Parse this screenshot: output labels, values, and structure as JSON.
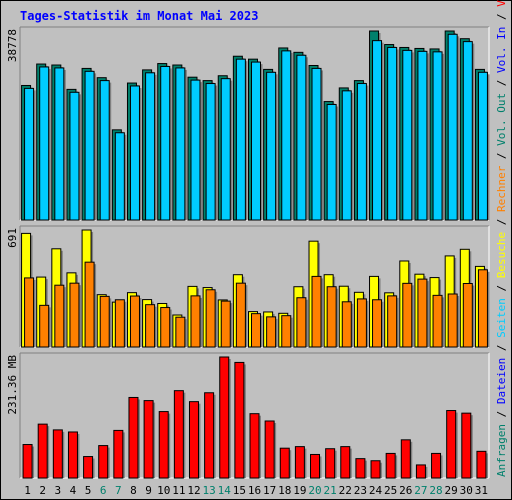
{
  "chart_data": {
    "type": "bar",
    "title": "Tages-Statistik im Monat Mai 2023",
    "categories": [
      "1",
      "2",
      "3",
      "4",
      "5",
      "6",
      "7",
      "8",
      "9",
      "10",
      "11",
      "12",
      "13",
      "14",
      "15",
      "16",
      "17",
      "18",
      "19",
      "20",
      "21",
      "22",
      "23",
      "24",
      "25",
      "26",
      "27",
      "28",
      "29",
      "30",
      "31"
    ],
    "weekend_days": [
      "6",
      "7",
      "13",
      "14",
      "20",
      "21",
      "27",
      "28"
    ],
    "panels": [
      {
        "id": "requests",
        "axis_label": "38778",
        "ymax": 38778,
        "series": [
          {
            "name": "Anfragen",
            "color": "#00806c",
            "values": [
              27600,
              32000,
              31800,
              26800,
              31100,
              29200,
              18500,
              28100,
              30800,
              32100,
              31800,
              29300,
              28600,
              29600,
              33600,
              33000,
              30900,
              35300,
              34400,
              31700,
              24300,
              27100,
              28600,
              38778,
              36000,
              35400,
              35200,
              35100,
              38778,
              37200,
              30900
            ]
          },
          {
            "name": "Dateien",
            "color": "#00ccff",
            "values": [
              27000,
              31400,
              31200,
              26200,
              30500,
              28600,
              17900,
              27500,
              30200,
              31500,
              31200,
              28700,
              28000,
              29000,
              33000,
              32400,
              30300,
              34700,
              33800,
              31100,
              23700,
              26500,
              28000,
              36800,
              35400,
              34800,
              34600,
              34500,
              38100,
              36600,
              30300
            ]
          }
        ]
      },
      {
        "id": "visits",
        "axis_label": "691",
        "ymax": 691,
        "series": [
          {
            "name": "Seiten",
            "color": "#00ccff",
            "values": []
          },
          {
            "name": "Besuche",
            "color": "#ffff00",
            "values": [
              671,
              413,
              580,
              438,
              691,
              309,
              265,
              321,
              280,
              257,
              189,
              358,
              351,
              278,
              427,
              209,
              207,
              199,
              356,
              625,
              427,
              359,
              323,
              417,
              320,
              508,
              430,
              410,
              538,
              577,
              476
            ]
          },
          {
            "name": "Rechner",
            "color": "#ff8000",
            "values": [
              408,
              246,
              365,
              377,
              501,
              299,
              279,
              301,
              250,
              233,
              176,
              302,
              338,
              271,
              377,
              197,
              178,
              185,
              291,
              417,
              356,
              267,
              284,
              279,
              302,
              376,
              401,
              305,
              313,
              375,
              456
            ]
          }
        ]
      },
      {
        "id": "volume",
        "axis_label": "231.36 MB",
        "ymax": 231.36,
        "series": [
          {
            "name": "Vol. Out",
            "color": "#ff8000",
            "values": []
          },
          {
            "name": "Vol. In",
            "color": "#0000ff",
            "values": []
          },
          {
            "name": "Volumen",
            "color": "#ff0000",
            "values": [
              64,
              103,
              92,
              88,
              41,
              62,
              91,
              154,
              148,
              127,
              167,
              146,
              163,
              231.36,
              221,
              123,
              109,
              57,
              60,
              45,
              56,
              60,
              37,
              33,
              47,
              73,
              25,
              47,
              129,
              124,
              51
            ]
          }
        ]
      }
    ],
    "right_legend": [
      {
        "text": "Anfragen",
        "color": "#00806c"
      },
      {
        "text": " / ",
        "color": "#000000"
      },
      {
        "text": "Dateien",
        "color": "#0000ff"
      },
      {
        "text": " / ",
        "color": "#000000"
      },
      {
        "text": "Seiten",
        "color": "#00ccff"
      },
      {
        "text": " / ",
        "color": "#000000"
      },
      {
        "text": "Besuche",
        "color": "#ffff00"
      },
      {
        "text": " / ",
        "color": "#000000"
      },
      {
        "text": "Rechner",
        "color": "#ff8000"
      },
      {
        "text": " / ",
        "color": "#000000"
      },
      {
        "text": "Vol. Out",
        "color": "#00806c"
      },
      {
        "text": " / ",
        "color": "#000000"
      },
      {
        "text": "Vol. In",
        "color": "#0000ff"
      },
      {
        "text": " / ",
        "color": "#000000"
      },
      {
        "text": "Volumen",
        "color": "#ff0000"
      }
    ],
    "colors": {
      "background": "#c0c0c0",
      "title": "#0000ff",
      "weekday_label": "#000000",
      "weekend_label": "#00806c"
    }
  }
}
